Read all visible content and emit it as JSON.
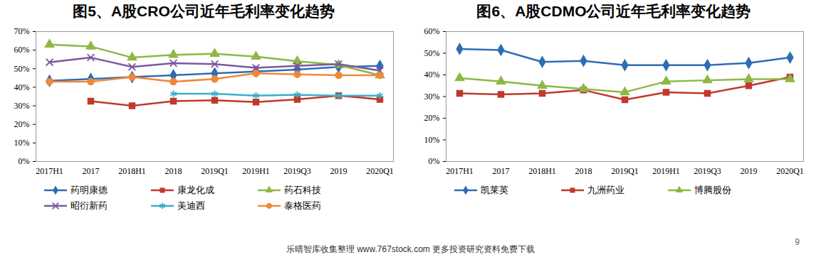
{
  "chart_data": [
    {
      "type": "line",
      "title": "图5、A股CRO公司近年毛利率变化趋势",
      "categories": [
        "2017H1",
        "2017",
        "2018H1",
        "2018",
        "2019Q1",
        "2019H1",
        "2019Q3",
        "2019",
        "2020Q1"
      ],
      "ylim": [
        0,
        70
      ],
      "yticks": [
        {
          "value": 0,
          "label": "0%"
        },
        {
          "value": 10,
          "label": "10%"
        },
        {
          "value": 20,
          "label": "20%"
        },
        {
          "value": 30,
          "label": "30%"
        },
        {
          "value": 40,
          "label": "40%"
        },
        {
          "value": 50,
          "label": "50%"
        },
        {
          "value": 60,
          "label": "60%"
        },
        {
          "value": 70,
          "label": "70%"
        }
      ],
      "grid": false,
      "legend": "bottom",
      "series": [
        {
          "name": "药明康德",
          "color": "#2E6DB4",
          "marker": "diamond",
          "values": [
            43.5,
            44.5,
            45.5,
            46.5,
            47.5,
            48.5,
            49.5,
            51,
            51.5
          ]
        },
        {
          "name": "康龙化成",
          "color": "#C0392B",
          "marker": "square",
          "values": [
            null,
            32.5,
            30,
            32.5,
            33,
            32,
            33.5,
            35.5,
            33.5
          ]
        },
        {
          "name": "药石科技",
          "color": "#8DB843",
          "marker": "triangle",
          "values": [
            63,
            62,
            56,
            57.5,
            58,
            56.5,
            54,
            52,
            46.5
          ]
        },
        {
          "name": "昭衍新药",
          "color": "#7A5A9E",
          "marker": "x",
          "values": [
            53.5,
            56,
            51,
            53,
            52.5,
            50.5,
            51.5,
            52.5,
            49
          ]
        },
        {
          "name": "美迪西",
          "color": "#3AAFC9",
          "marker": "asterisk",
          "values": [
            null,
            null,
            null,
            36.5,
            36.5,
            35.5,
            36,
            35.5,
            35.5
          ]
        },
        {
          "name": "泰格医药",
          "color": "#F0883A",
          "marker": "circle",
          "values": [
            43,
            43,
            45.5,
            43,
            44.5,
            47.5,
            47,
            46.5,
            46.5
          ]
        }
      ]
    },
    {
      "type": "line",
      "title": "图6、A股CDMO公司近年毛利率变化趋势",
      "categories": [
        "2017H1",
        "2017",
        "2018H1",
        "2018",
        "2019Q1",
        "2019H1",
        "2019Q3",
        "2019",
        "2020Q1"
      ],
      "ylim": [
        0,
        60
      ],
      "yticks": [
        {
          "value": 0,
          "label": "0%"
        },
        {
          "value": 10,
          "label": "10%"
        },
        {
          "value": 20,
          "label": "20%"
        },
        {
          "value": 30,
          "label": "30%"
        },
        {
          "value": 40,
          "label": "40%"
        },
        {
          "value": 50,
          "label": "50%"
        },
        {
          "value": 60,
          "label": "60%"
        }
      ],
      "grid": false,
      "legend": "bottom",
      "series": [
        {
          "name": "凯莱英",
          "color": "#2E6DB4",
          "marker": "diamond",
          "values": [
            52,
            51.5,
            46,
            46.5,
            44.5,
            44.5,
            44.5,
            45.5,
            48
          ]
        },
        {
          "name": "九洲药业",
          "color": "#C0392B",
          "marker": "square",
          "values": [
            31.5,
            31,
            31.5,
            33,
            28.5,
            32,
            31.5,
            35,
            39
          ]
        },
        {
          "name": "博腾股份",
          "color": "#8DB843",
          "marker": "triangle",
          "values": [
            38.5,
            37,
            35,
            33.5,
            32,
            37,
            37.5,
            38,
            38
          ]
        }
      ]
    }
  ],
  "footer": "乐晴智库收集整理 www.767stock.com 更多投资研究资料免费下载",
  "page_number": "9"
}
